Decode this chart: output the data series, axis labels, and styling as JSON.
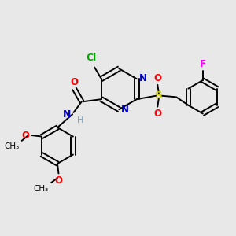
{
  "bg_color": "#e8e8e8",
  "bond_color": "#000000",
  "bond_width": 1.4,
  "atom_colors": {
    "N": "#0000cc",
    "O": "#ff0000",
    "Cl": "#00aa00",
    "S": "#cccc00",
    "F": "#ff00ff",
    "C": "#000000",
    "H": "#888888"
  },
  "font_size": 8.5,
  "title": ""
}
